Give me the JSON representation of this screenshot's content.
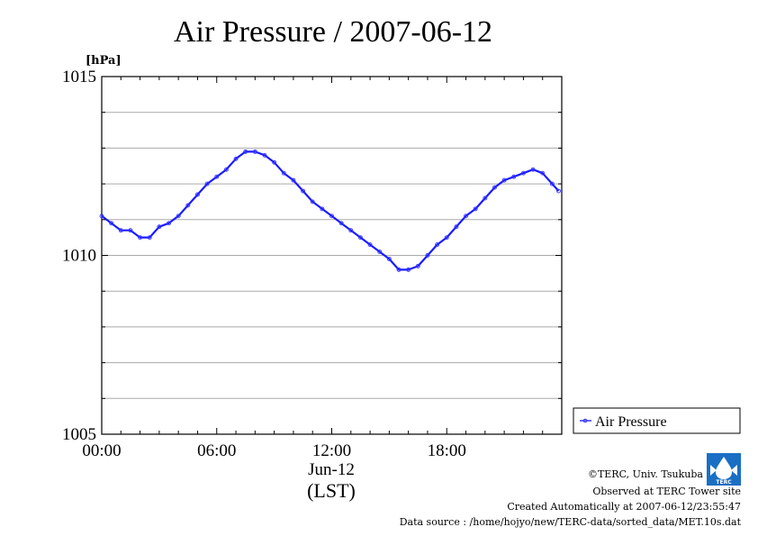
{
  "chart_data": {
    "type": "line",
    "title": "Air Pressure / 2007-06-12",
    "ylabel": "[hPa]",
    "xlabel": "(LST)",
    "x_date_label": "Jun-12",
    "x_ticks": [
      "00:00",
      "06:00",
      "12:00",
      "18:00"
    ],
    "y_ticks": [
      "1005",
      "1010",
      "1015"
    ],
    "ylim": [
      1005,
      1015
    ],
    "xlim": [
      "2007-06-12 00:00",
      "2007-06-13 00:00"
    ],
    "grid": true,
    "legend_position": "right",
    "series": [
      {
        "name": "Air Pressure",
        "color": "#3333ff",
        "x": [
          "00:00",
          "00:30",
          "01:00",
          "01:30",
          "02:00",
          "02:30",
          "03:00",
          "03:30",
          "04:00",
          "04:30",
          "05:00",
          "05:30",
          "06:00",
          "06:30",
          "07:00",
          "07:30",
          "08:00",
          "08:30",
          "09:00",
          "09:30",
          "10:00",
          "10:30",
          "11:00",
          "11:30",
          "12:00",
          "12:30",
          "13:00",
          "13:30",
          "14:00",
          "14:30",
          "15:00",
          "15:30",
          "16:00",
          "16:30",
          "17:00",
          "17:30",
          "18:00",
          "18:30",
          "19:00",
          "19:30",
          "20:00",
          "20:30",
          "21:00",
          "21:30",
          "22:00",
          "22:30",
          "23:00",
          "23:30",
          "23:50"
        ],
        "values": [
          1011.1,
          1010.9,
          1010.7,
          1010.7,
          1010.5,
          1010.5,
          1010.8,
          1010.9,
          1011.1,
          1011.4,
          1011.7,
          1012.0,
          1012.2,
          1012.4,
          1012.7,
          1012.9,
          1012.9,
          1012.8,
          1012.6,
          1012.3,
          1012.1,
          1011.8,
          1011.5,
          1011.3,
          1011.1,
          1010.9,
          1010.7,
          1010.5,
          1010.3,
          1010.1,
          1009.9,
          1009.6,
          1009.6,
          1009.7,
          1010.0,
          1010.3,
          1010.5,
          1010.8,
          1011.1,
          1011.3,
          1011.6,
          1011.9,
          1012.1,
          1012.2,
          1012.3,
          1012.4,
          1012.3,
          1012.0,
          1011.8
        ]
      }
    ]
  },
  "credits": {
    "copyright": "©TERC, Univ. Tsukuba",
    "observed": "Observed at TERC Tower site",
    "created": "Created Automatically at 2007-06-12/23:55:47",
    "source": "Data source : /home/hojyo/new/TERC-data/sorted_data/MET.10s.dat"
  },
  "logo": {
    "text": "TERC",
    "color": "#1a6fc4"
  }
}
